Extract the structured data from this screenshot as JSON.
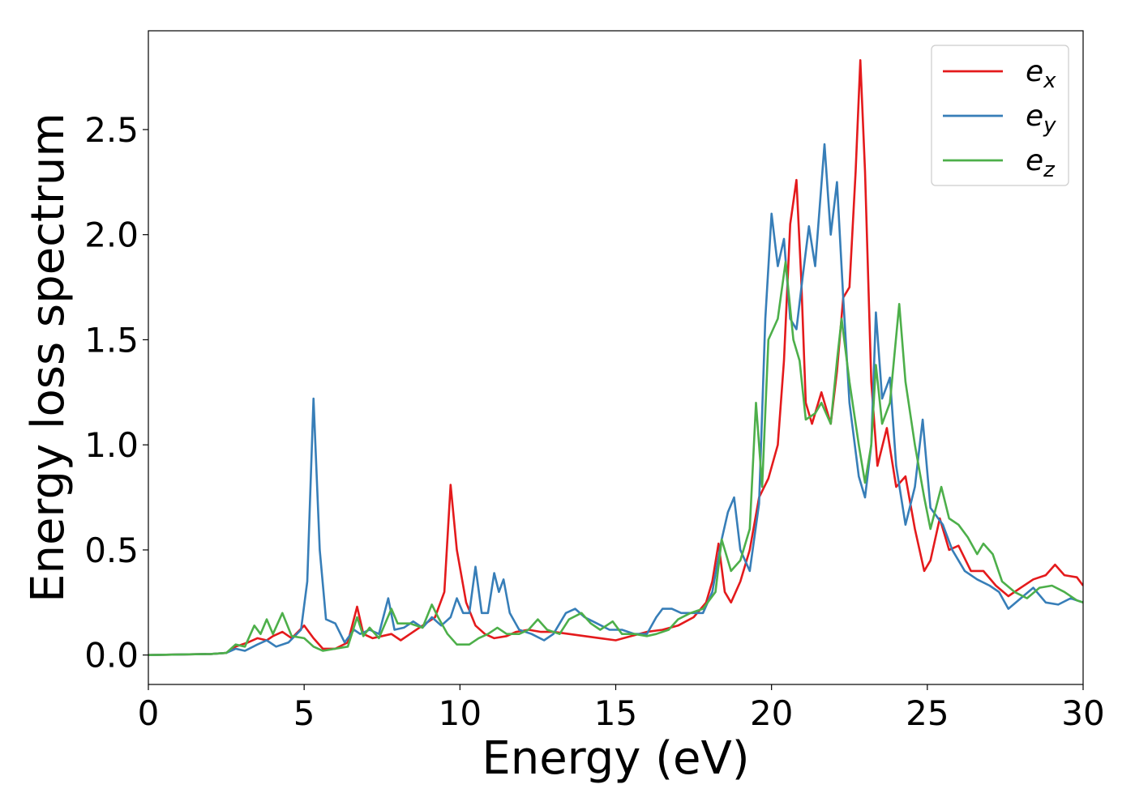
{
  "chart_data": {
    "type": "line",
    "title": "",
    "xlabel": "Energy (eV)",
    "ylabel": "Energy loss spectrum",
    "xlim": [
      0,
      30
    ],
    "ylim": [
      -0.14,
      2.97
    ],
    "xticks": [
      0,
      5,
      10,
      15,
      20,
      25,
      30
    ],
    "xtick_labels": [
      "0",
      "5",
      "10",
      "15",
      "20",
      "25",
      "30"
    ],
    "yticks": [
      0.0,
      0.5,
      1.0,
      1.5,
      2.0,
      2.5
    ],
    "ytick_labels": [
      "0.0",
      "0.5",
      "1.0",
      "1.5",
      "2.0",
      "2.5"
    ],
    "grid": false,
    "legend_position": "top-right",
    "series": [
      {
        "name": "e_x",
        "label_base": "e",
        "label_sub": "x",
        "color": "#e41a1c",
        "points": [
          [
            0,
            0
          ],
          [
            2,
            0.005
          ],
          [
            2.5,
            0.01
          ],
          [
            2.8,
            0.04
          ],
          [
            3.2,
            0.06
          ],
          [
            3.5,
            0.08
          ],
          [
            3.8,
            0.07
          ],
          [
            4.0,
            0.09
          ],
          [
            4.3,
            0.11
          ],
          [
            4.6,
            0.08
          ],
          [
            5.0,
            0.14
          ],
          [
            5.3,
            0.08
          ],
          [
            5.6,
            0.03
          ],
          [
            6.0,
            0.03
          ],
          [
            6.4,
            0.06
          ],
          [
            6.7,
            0.23
          ],
          [
            6.9,
            0.1
          ],
          [
            7.2,
            0.08
          ],
          [
            7.5,
            0.09
          ],
          [
            7.8,
            0.1
          ],
          [
            8.1,
            0.07
          ],
          [
            8.4,
            0.1
          ],
          [
            8.8,
            0.14
          ],
          [
            9.2,
            0.18
          ],
          [
            9.5,
            0.3
          ],
          [
            9.7,
            0.81
          ],
          [
            9.9,
            0.5
          ],
          [
            10.2,
            0.25
          ],
          [
            10.5,
            0.14
          ],
          [
            10.8,
            0.1
          ],
          [
            11.1,
            0.08
          ],
          [
            11.5,
            0.09
          ],
          [
            11.8,
            0.11
          ],
          [
            12.2,
            0.12
          ],
          [
            12.6,
            0.11
          ],
          [
            13.0,
            0.11
          ],
          [
            13.5,
            0.1
          ],
          [
            14.0,
            0.09
          ],
          [
            14.5,
            0.08
          ],
          [
            15.0,
            0.07
          ],
          [
            15.5,
            0.09
          ],
          [
            16.0,
            0.11
          ],
          [
            16.5,
            0.12
          ],
          [
            17.0,
            0.14
          ],
          [
            17.5,
            0.18
          ],
          [
            17.9,
            0.25
          ],
          [
            18.1,
            0.35
          ],
          [
            18.3,
            0.53
          ],
          [
            18.5,
            0.3
          ],
          [
            18.7,
            0.25
          ],
          [
            19.0,
            0.35
          ],
          [
            19.3,
            0.5
          ],
          [
            19.6,
            0.75
          ],
          [
            19.9,
            0.84
          ],
          [
            20.2,
            1.0
          ],
          [
            20.4,
            1.4
          ],
          [
            20.6,
            2.05
          ],
          [
            20.8,
            2.26
          ],
          [
            20.95,
            1.8
          ],
          [
            21.1,
            1.2
          ],
          [
            21.3,
            1.1
          ],
          [
            21.6,
            1.25
          ],
          [
            21.9,
            1.1
          ],
          [
            22.1,
            1.35
          ],
          [
            22.3,
            1.7
          ],
          [
            22.5,
            1.75
          ],
          [
            22.7,
            2.3
          ],
          [
            22.85,
            2.83
          ],
          [
            23.0,
            2.3
          ],
          [
            23.2,
            1.3
          ],
          [
            23.4,
            0.9
          ],
          [
            23.7,
            1.08
          ],
          [
            24.0,
            0.8
          ],
          [
            24.3,
            0.85
          ],
          [
            24.6,
            0.6
          ],
          [
            24.9,
            0.4
          ],
          [
            25.1,
            0.45
          ],
          [
            25.4,
            0.65
          ],
          [
            25.7,
            0.5
          ],
          [
            26.0,
            0.52
          ],
          [
            26.4,
            0.4
          ],
          [
            26.8,
            0.4
          ],
          [
            27.2,
            0.33
          ],
          [
            27.6,
            0.28
          ],
          [
            28.0,
            0.32
          ],
          [
            28.4,
            0.36
          ],
          [
            28.8,
            0.38
          ],
          [
            29.1,
            0.43
          ],
          [
            29.4,
            0.38
          ],
          [
            29.8,
            0.37
          ],
          [
            30,
            0.33
          ]
        ]
      },
      {
        "name": "e_y",
        "label_base": "e",
        "label_sub": "y",
        "color": "#377eb8",
        "points": [
          [
            0,
            0
          ],
          [
            2,
            0.005
          ],
          [
            2.5,
            0.01
          ],
          [
            2.8,
            0.03
          ],
          [
            3.1,
            0.02
          ],
          [
            3.5,
            0.05
          ],
          [
            3.8,
            0.07
          ],
          [
            4.1,
            0.04
          ],
          [
            4.5,
            0.06
          ],
          [
            4.9,
            0.12
          ],
          [
            5.1,
            0.35
          ],
          [
            5.3,
            1.22
          ],
          [
            5.5,
            0.5
          ],
          [
            5.7,
            0.17
          ],
          [
            6.0,
            0.15
          ],
          [
            6.3,
            0.06
          ],
          [
            6.6,
            0.12
          ],
          [
            6.8,
            0.1
          ],
          [
            7.1,
            0.12
          ],
          [
            7.4,
            0.1
          ],
          [
            7.7,
            0.27
          ],
          [
            7.9,
            0.12
          ],
          [
            8.2,
            0.13
          ],
          [
            8.5,
            0.16
          ],
          [
            8.8,
            0.13
          ],
          [
            9.1,
            0.18
          ],
          [
            9.4,
            0.14
          ],
          [
            9.7,
            0.18
          ],
          [
            9.9,
            0.27
          ],
          [
            10.1,
            0.2
          ],
          [
            10.3,
            0.2
          ],
          [
            10.5,
            0.42
          ],
          [
            10.7,
            0.2
          ],
          [
            10.9,
            0.2
          ],
          [
            11.1,
            0.39
          ],
          [
            11.25,
            0.3
          ],
          [
            11.4,
            0.36
          ],
          [
            11.6,
            0.2
          ],
          [
            11.9,
            0.12
          ],
          [
            12.3,
            0.1
          ],
          [
            12.7,
            0.07
          ],
          [
            13.0,
            0.1
          ],
          [
            13.4,
            0.2
          ],
          [
            13.7,
            0.22
          ],
          [
            14.0,
            0.18
          ],
          [
            14.4,
            0.15
          ],
          [
            14.8,
            0.12
          ],
          [
            15.2,
            0.12
          ],
          [
            15.6,
            0.1
          ],
          [
            16.0,
            0.1
          ],
          [
            16.3,
            0.18
          ],
          [
            16.5,
            0.22
          ],
          [
            16.8,
            0.22
          ],
          [
            17.1,
            0.2
          ],
          [
            17.4,
            0.2
          ],
          [
            17.8,
            0.2
          ],
          [
            18.1,
            0.3
          ],
          [
            18.4,
            0.55
          ],
          [
            18.6,
            0.68
          ],
          [
            18.8,
            0.75
          ],
          [
            19.0,
            0.5
          ],
          [
            19.3,
            0.4
          ],
          [
            19.6,
            0.72
          ],
          [
            19.8,
            1.6
          ],
          [
            20.0,
            2.1
          ],
          [
            20.2,
            1.85
          ],
          [
            20.4,
            1.98
          ],
          [
            20.6,
            1.6
          ],
          [
            20.8,
            1.55
          ],
          [
            21.0,
            1.8
          ],
          [
            21.2,
            2.04
          ],
          [
            21.4,
            1.85
          ],
          [
            21.7,
            2.43
          ],
          [
            21.9,
            2.0
          ],
          [
            22.1,
            2.25
          ],
          [
            22.3,
            1.7
          ],
          [
            22.5,
            1.2
          ],
          [
            22.8,
            0.85
          ],
          [
            23.0,
            0.75
          ],
          [
            23.2,
            1.0
          ],
          [
            23.35,
            1.63
          ],
          [
            23.55,
            1.22
          ],
          [
            23.8,
            1.32
          ],
          [
            24.0,
            0.9
          ],
          [
            24.3,
            0.62
          ],
          [
            24.6,
            0.8
          ],
          [
            24.85,
            1.12
          ],
          [
            25.1,
            0.7
          ],
          [
            25.5,
            0.62
          ],
          [
            25.8,
            0.5
          ],
          [
            26.2,
            0.4
          ],
          [
            26.6,
            0.36
          ],
          [
            27.0,
            0.33
          ],
          [
            27.3,
            0.3
          ],
          [
            27.6,
            0.22
          ],
          [
            28.0,
            0.27
          ],
          [
            28.4,
            0.32
          ],
          [
            28.8,
            0.25
          ],
          [
            29.2,
            0.24
          ],
          [
            29.6,
            0.27
          ],
          [
            30,
            0.25
          ]
        ]
      },
      {
        "name": "e_z",
        "label_base": "e",
        "label_sub": "z",
        "color": "#4daf4a",
        "points": [
          [
            0,
            0
          ],
          [
            2,
            0.005
          ],
          [
            2.5,
            0.01
          ],
          [
            2.8,
            0.05
          ],
          [
            3.1,
            0.04
          ],
          [
            3.4,
            0.14
          ],
          [
            3.6,
            0.1
          ],
          [
            3.8,
            0.17
          ],
          [
            4.0,
            0.1
          ],
          [
            4.3,
            0.2
          ],
          [
            4.6,
            0.09
          ],
          [
            5.0,
            0.08
          ],
          [
            5.3,
            0.04
          ],
          [
            5.6,
            0.02
          ],
          [
            6.0,
            0.03
          ],
          [
            6.4,
            0.04
          ],
          [
            6.7,
            0.18
          ],
          [
            6.9,
            0.09
          ],
          [
            7.1,
            0.13
          ],
          [
            7.4,
            0.08
          ],
          [
            7.8,
            0.22
          ],
          [
            8.0,
            0.15
          ],
          [
            8.4,
            0.15
          ],
          [
            8.8,
            0.13
          ],
          [
            9.1,
            0.24
          ],
          [
            9.3,
            0.18
          ],
          [
            9.6,
            0.1
          ],
          [
            9.9,
            0.05
          ],
          [
            10.3,
            0.05
          ],
          [
            10.6,
            0.08
          ],
          [
            10.9,
            0.1
          ],
          [
            11.2,
            0.13
          ],
          [
            11.5,
            0.1
          ],
          [
            11.9,
            0.1
          ],
          [
            12.2,
            0.12
          ],
          [
            12.5,
            0.17
          ],
          [
            12.8,
            0.12
          ],
          [
            13.2,
            0.1
          ],
          [
            13.5,
            0.17
          ],
          [
            13.9,
            0.2
          ],
          [
            14.2,
            0.15
          ],
          [
            14.5,
            0.12
          ],
          [
            14.9,
            0.16
          ],
          [
            15.2,
            0.1
          ],
          [
            15.6,
            0.1
          ],
          [
            16.0,
            0.09
          ],
          [
            16.3,
            0.1
          ],
          [
            16.7,
            0.12
          ],
          [
            17.0,
            0.17
          ],
          [
            17.4,
            0.2
          ],
          [
            17.8,
            0.22
          ],
          [
            18.2,
            0.3
          ],
          [
            18.4,
            0.55
          ],
          [
            18.7,
            0.4
          ],
          [
            19.0,
            0.45
          ],
          [
            19.3,
            0.6
          ],
          [
            19.5,
            1.2
          ],
          [
            19.7,
            0.8
          ],
          [
            19.9,
            1.5
          ],
          [
            20.2,
            1.6
          ],
          [
            20.45,
            1.87
          ],
          [
            20.7,
            1.5
          ],
          [
            20.9,
            1.4
          ],
          [
            21.1,
            1.12
          ],
          [
            21.4,
            1.15
          ],
          [
            21.6,
            1.2
          ],
          [
            21.9,
            1.1
          ],
          [
            22.1,
            1.4
          ],
          [
            22.25,
            1.6
          ],
          [
            22.5,
            1.3
          ],
          [
            22.8,
            1.0
          ],
          [
            23.0,
            0.82
          ],
          [
            23.2,
            1.0
          ],
          [
            23.35,
            1.38
          ],
          [
            23.55,
            1.1
          ],
          [
            23.8,
            1.2
          ],
          [
            24.1,
            1.67
          ],
          [
            24.3,
            1.3
          ],
          [
            24.6,
            1.0
          ],
          [
            24.9,
            0.75
          ],
          [
            25.1,
            0.6
          ],
          [
            25.45,
            0.8
          ],
          [
            25.7,
            0.65
          ],
          [
            26.0,
            0.62
          ],
          [
            26.3,
            0.56
          ],
          [
            26.6,
            0.48
          ],
          [
            26.8,
            0.53
          ],
          [
            27.1,
            0.48
          ],
          [
            27.4,
            0.35
          ],
          [
            27.8,
            0.3
          ],
          [
            28.2,
            0.27
          ],
          [
            28.6,
            0.32
          ],
          [
            29.0,
            0.33
          ],
          [
            29.4,
            0.3
          ],
          [
            29.8,
            0.26
          ],
          [
            30,
            0.25
          ]
        ]
      }
    ]
  }
}
